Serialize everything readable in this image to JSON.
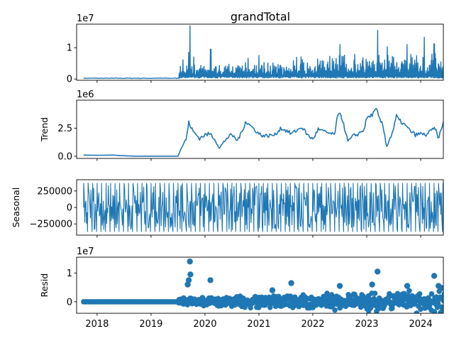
{
  "title": "grandTotal",
  "colors": {
    "series": "#1f77b4",
    "axes": "#000000",
    "background": "#ffffff"
  },
  "chart_data": [
    {
      "type": "line",
      "name": "observed",
      "ylabel": "",
      "offset_label": "1e7",
      "ylim": [
        -0.04,
        1.75
      ],
      "yticks": [
        0,
        1
      ],
      "ytick_labels": [
        "0",
        "1"
      ],
      "x_range": [
        2017.62,
        2024.42
      ],
      "approx_series": [
        {
          "x": 2017.75,
          "y": 0.02
        },
        {
          "x": 2019.5,
          "y": 0.01
        },
        {
          "x": 2019.55,
          "y": 0.12
        },
        {
          "x": 2019.7,
          "y": 0.85
        },
        {
          "x": 2019.73,
          "y": 1.7
        },
        {
          "x": 2019.8,
          "y": 0.45
        },
        {
          "x": 2020.1,
          "y": 0.95
        },
        {
          "x": 2021.0,
          "y": 0.75
        },
        {
          "x": 2022.5,
          "y": 1.1
        },
        {
          "x": 2023.2,
          "y": 1.55
        },
        {
          "x": 2023.75,
          "y": 0.95
        },
        {
          "x": 2024.25,
          "y": 1.12
        },
        {
          "x": 2024.42,
          "y": 0.4
        }
      ]
    },
    {
      "type": "line",
      "name": "trend",
      "ylabel": "Trend",
      "offset_label": "1e6",
      "ylim": [
        -0.2,
        5.0
      ],
      "yticks": [
        0,
        2.5
      ],
      "ytick_labels": [
        "0.0",
        "2.5"
      ],
      "x_range": [
        2017.62,
        2024.42
      ],
      "points": [
        {
          "x": 2017.75,
          "y": 0.1
        },
        {
          "x": 2018.0,
          "y": 0.08
        },
        {
          "x": 2018.3,
          "y": 0.1
        },
        {
          "x": 2018.45,
          "y": 0.05
        },
        {
          "x": 2018.7,
          "y": 0.0
        },
        {
          "x": 2019.5,
          "y": 0.0
        },
        {
          "x": 2019.55,
          "y": 0.6
        },
        {
          "x": 2019.65,
          "y": 1.5
        },
        {
          "x": 2019.7,
          "y": 3.0
        },
        {
          "x": 2019.78,
          "y": 2.2
        },
        {
          "x": 2019.9,
          "y": 1.6
        },
        {
          "x": 2020.0,
          "y": 1.9
        },
        {
          "x": 2020.1,
          "y": 2.0
        },
        {
          "x": 2020.2,
          "y": 1.4
        },
        {
          "x": 2020.27,
          "y": 0.7
        },
        {
          "x": 2020.4,
          "y": 1.6
        },
        {
          "x": 2020.5,
          "y": 1.9
        },
        {
          "x": 2020.6,
          "y": 1.4
        },
        {
          "x": 2020.7,
          "y": 2.3
        },
        {
          "x": 2020.75,
          "y": 3.1
        },
        {
          "x": 2020.85,
          "y": 2.7
        },
        {
          "x": 2021.0,
          "y": 2.0
        },
        {
          "x": 2021.1,
          "y": 1.8
        },
        {
          "x": 2021.3,
          "y": 1.9
        },
        {
          "x": 2021.4,
          "y": 2.5
        },
        {
          "x": 2021.5,
          "y": 2.3
        },
        {
          "x": 2021.6,
          "y": 2.0
        },
        {
          "x": 2021.8,
          "y": 2.6
        },
        {
          "x": 2021.9,
          "y": 1.9
        },
        {
          "x": 2022.0,
          "y": 1.5
        },
        {
          "x": 2022.1,
          "y": 2.4
        },
        {
          "x": 2022.2,
          "y": 2.2
        },
        {
          "x": 2022.4,
          "y": 1.9
        },
        {
          "x": 2022.45,
          "y": 3.3
        },
        {
          "x": 2022.5,
          "y": 4.0
        },
        {
          "x": 2022.55,
          "y": 3.2
        },
        {
          "x": 2022.65,
          "y": 1.3
        },
        {
          "x": 2022.75,
          "y": 1.8
        },
        {
          "x": 2022.85,
          "y": 2.0
        },
        {
          "x": 2022.95,
          "y": 2.4
        },
        {
          "x": 2023.0,
          "y": 3.4
        },
        {
          "x": 2023.1,
          "y": 3.7
        },
        {
          "x": 2023.18,
          "y": 4.2
        },
        {
          "x": 2023.22,
          "y": 3.5
        },
        {
          "x": 2023.3,
          "y": 2.7
        },
        {
          "x": 2023.37,
          "y": 0.9
        },
        {
          "x": 2023.45,
          "y": 1.8
        },
        {
          "x": 2023.5,
          "y": 2.5
        },
        {
          "x": 2023.55,
          "y": 3.6
        },
        {
          "x": 2023.6,
          "y": 3.2
        },
        {
          "x": 2023.7,
          "y": 2.8
        },
        {
          "x": 2023.8,
          "y": 2.3
        },
        {
          "x": 2023.9,
          "y": 1.9
        },
        {
          "x": 2024.0,
          "y": 2.0
        },
        {
          "x": 2024.1,
          "y": 1.9
        },
        {
          "x": 2024.2,
          "y": 2.3
        },
        {
          "x": 2024.27,
          "y": 2.5
        },
        {
          "x": 2024.32,
          "y": 1.6
        },
        {
          "x": 2024.38,
          "y": 2.3
        },
        {
          "x": 2024.42,
          "y": 3.1
        }
      ]
    },
    {
      "type": "line",
      "name": "seasonal",
      "ylabel": "Seasonal",
      "ylim": [
        -420000,
        420000
      ],
      "yticks": [
        250000,
        0,
        -250000
      ],
      "ytick_labels": [
        "250000",
        "0",
        "−250000"
      ],
      "x_range": [
        2017.62,
        2024.42
      ],
      "amplitude_max": 370000,
      "amplitude_min": -370000,
      "period_years": 0.0833
    },
    {
      "type": "scatter",
      "name": "resid",
      "ylabel": "Resid",
      "offset_label": "1e7",
      "ylim": [
        -0.4,
        1.55
      ],
      "yticks": [
        0,
        1
      ],
      "ytick_labels": [
        "0",
        "1"
      ],
      "x_range": [
        2017.62,
        2024.42
      ],
      "xticks": [
        2018,
        2019,
        2020,
        2021,
        2022,
        2023,
        2024
      ],
      "xtick_labels": [
        "2018",
        "2019",
        "2020",
        "2021",
        "2022",
        "2023",
        "2024"
      ],
      "points": [
        {
          "x": 2019.72,
          "y": 1.4
        },
        {
          "x": 2019.73,
          "y": 0.95
        },
        {
          "x": 2019.68,
          "y": 0.6
        },
        {
          "x": 2019.7,
          "y": 0.75
        },
        {
          "x": 2020.1,
          "y": 0.75
        },
        {
          "x": 2021.25,
          "y": 0.4
        },
        {
          "x": 2021.6,
          "y": 0.65
        },
        {
          "x": 2022.5,
          "y": 0.55
        },
        {
          "x": 2023.2,
          "y": 1.05
        },
        {
          "x": 2023.1,
          "y": 0.6
        },
        {
          "x": 2023.75,
          "y": 0.55
        },
        {
          "x": 2024.25,
          "y": 0.9
        },
        {
          "x": 2024.33,
          "y": 0.55
        },
        {
          "x": 2024.4,
          "y": 0.48
        }
      ]
    }
  ]
}
